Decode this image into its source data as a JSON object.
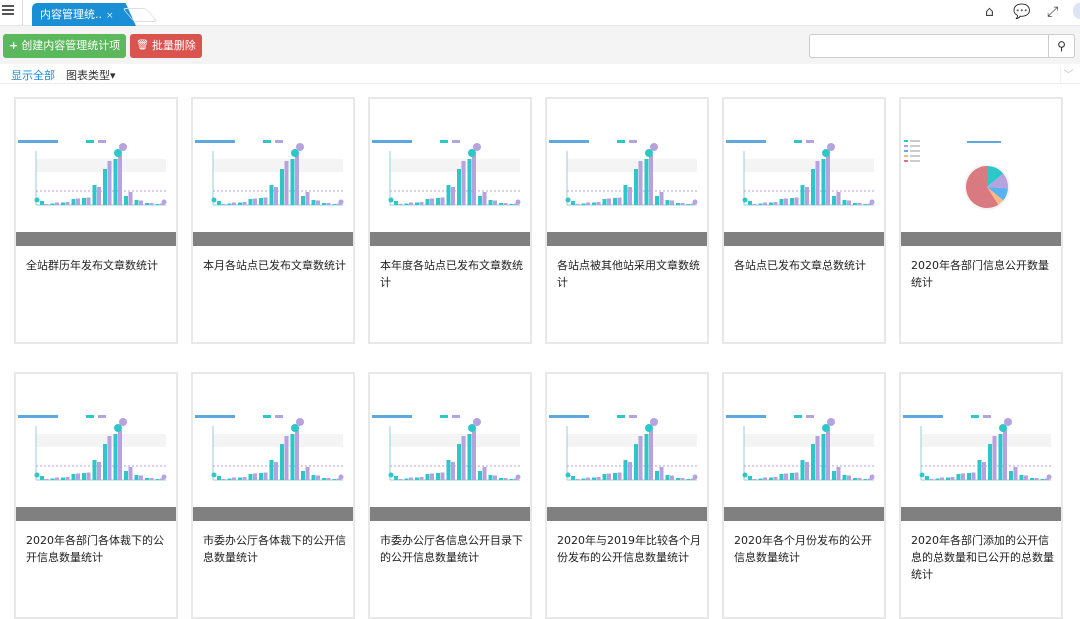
{
  "header": {
    "tab_label": "内容管理统..",
    "tab_close": "×",
    "icons": [
      "menu-icon",
      "home-icon",
      "comments-icon",
      "fullscreen-icon",
      "avatar"
    ]
  },
  "toolbar": {
    "create_label": "创建内容管理统计项",
    "create_icon": "+",
    "delete_label": "批量删除",
    "delete_icon": "trash-icon",
    "search_placeholder": "",
    "search_icon": "search-icon"
  },
  "filters": {
    "show_all": "显示全部",
    "chart_type": "图表类型",
    "chart_type_caret": "▾"
  },
  "colors": {
    "primary": "#1a8fd6",
    "success": "#5cb85c",
    "danger": "#d9534f",
    "series1": "#2ec7c9",
    "series2": "#b6a2de"
  },
  "cards": [
    {
      "title": "全站群历年发布文章数统计",
      "thumb": "bar"
    },
    {
      "title": "本月各站点已发布文章数统计",
      "thumb": "bar"
    },
    {
      "title": "本年度各站点已发布文章数统计",
      "thumb": "bar"
    },
    {
      "title": "各站点被其他站采用文章数统计",
      "thumb": "bar"
    },
    {
      "title": "各站点已发布文章总数统计",
      "thumb": "bar"
    },
    {
      "title": "2020年各部门信息公开数量统计",
      "thumb": "pie"
    },
    {
      "title": "2020年各部门各体裁下的公开信息数量统计",
      "thumb": "bar"
    },
    {
      "title": "市委办公厅各体裁下的公开信息数量统计",
      "thumb": "bar"
    },
    {
      "title": "市委办公厅各信息公开目录下的公开信息数量统计",
      "thumb": "bar"
    },
    {
      "title": "2020年与2019年比较各个月份发布的公开信息数量统计",
      "thumb": "bar"
    },
    {
      "title": "2020年各个月份发布的公开信息数量统计",
      "thumb": "bar"
    },
    {
      "title": "2020年各部门添加的公开信息的总数量和已公开的总数量统计",
      "thumb": "bar"
    }
  ]
}
